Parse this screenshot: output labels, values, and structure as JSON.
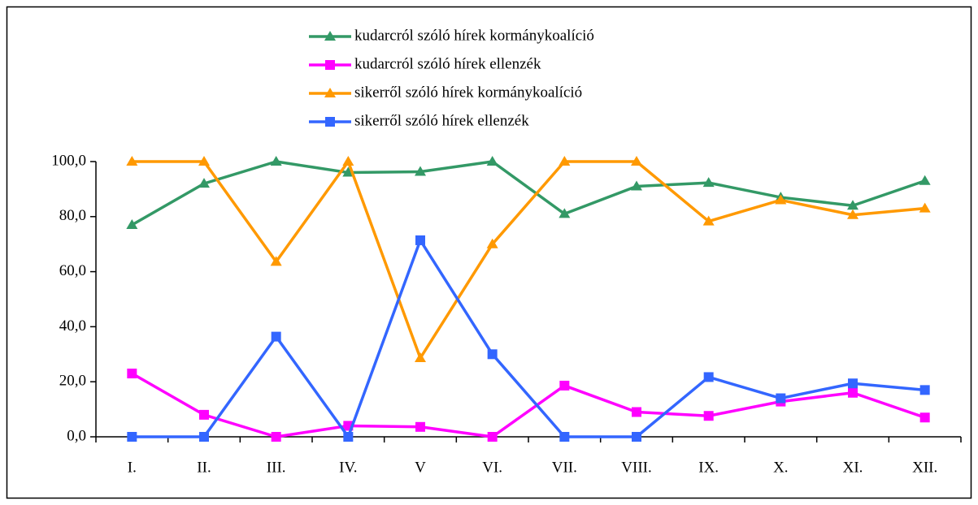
{
  "chart_data": {
    "type": "line",
    "categories": [
      "I.",
      "II.",
      "III.",
      "IV.",
      "V",
      "VI.",
      "VII.",
      "VIII.",
      "IX.",
      "X.",
      "XI.",
      "XII."
    ],
    "series": [
      {
        "name": "kudarcról szóló hírek kormánykoalíció",
        "color": "#339966",
        "marker": "triangle",
        "values": [
          77,
          92,
          100,
          96,
          96.3,
          100,
          81,
          91,
          92.3,
          87,
          84,
          93
        ]
      },
      {
        "name": "kudarcról szóló hírek ellenzék",
        "color": "#ff00ff",
        "marker": "square",
        "values": [
          23,
          8,
          0,
          4,
          3.6,
          0,
          18.6,
          9,
          7.6,
          12.8,
          16,
          7
        ]
      },
      {
        "name": "sikerről szóló hírek kormánykoalíció",
        "color": "#ff9900",
        "marker": "triangle",
        "values": [
          100,
          100,
          63.6,
          100,
          28.6,
          70,
          100,
          100,
          78.3,
          86,
          80.6,
          83
        ]
      },
      {
        "name": "sikerről szóló hírek ellenzék",
        "color": "#3366ff",
        "marker": "square",
        "values": [
          0,
          0,
          36.4,
          0,
          71.4,
          30,
          0,
          0,
          21.7,
          14,
          19.4,
          17
        ]
      }
    ],
    "ylim": [
      0,
      100
    ],
    "yticks": [
      {
        "value": 0,
        "label": "0,0"
      },
      {
        "value": 20,
        "label": "20,0"
      },
      {
        "value": 40,
        "label": "40,0"
      },
      {
        "value": 60,
        "label": "60,0"
      },
      {
        "value": 80,
        "label": "80,0"
      },
      {
        "value": 100,
        "label": "100,0"
      }
    ],
    "grid": false,
    "legend": "top"
  }
}
